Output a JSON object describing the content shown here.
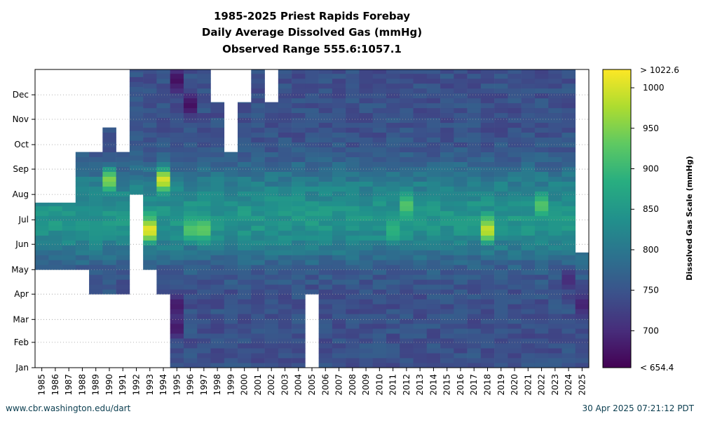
{
  "chart_data": {
    "type": "heatmap",
    "title_lines": [
      "1985-2025 Priest Rapids Forebay",
      "Daily Average Dissolved Gas (mmHg)",
      "Observed Range 555.6:1057.1"
    ],
    "x_categories": [
      "1985",
      "1986",
      "1987",
      "1988",
      "1989",
      "1990",
      "1991",
      "1992",
      "1993",
      "1994",
      "1995",
      "1996",
      "1997",
      "1998",
      "1999",
      "2000",
      "2001",
      "2002",
      "2003",
      "2004",
      "2005",
      "2006",
      "2007",
      "2008",
      "2009",
      "2010",
      "2011",
      "2012",
      "2013",
      "2014",
      "2015",
      "2016",
      "2017",
      "2018",
      "2019",
      "2020",
      "2021",
      "2022",
      "2023",
      "2024",
      "2025"
    ],
    "y_categories": [
      "Jan",
      "Feb",
      "Mar",
      "Apr",
      "May",
      "Jun",
      "Jul",
      "Aug",
      "Sep",
      "Oct",
      "Nov",
      "Dec"
    ],
    "colorbar": {
      "label": "Dissolved Gas Scale (mmHg)",
      "min": 654.4,
      "max": 1022.6,
      "ticks": [
        700,
        750,
        800,
        850,
        900,
        950,
        1000
      ],
      "top_label": "> 1022.6",
      "bottom_label": "< 654.4",
      "colormap": "viridis"
    },
    "grid": "dotted horizontal",
    "coverage": [
      {
        "year": "1985",
        "start": "Jul",
        "end": "May"
      },
      {
        "year": "1986",
        "start": "Jul",
        "end": "May"
      },
      {
        "year": "1987",
        "start": "Jul",
        "end": "May"
      },
      {
        "year": "1988",
        "start": "Sep",
        "end": "May"
      },
      {
        "year": "1989",
        "start": "Sep",
        "end": "Apr"
      },
      {
        "year": "1990",
        "start": "Oct",
        "end": "Apr"
      },
      {
        "year": "1991",
        "start": "Sep",
        "end": "Apr"
      },
      {
        "year": "1992",
        "start": "Dec",
        "end": "Aug"
      },
      {
        "year": "1993",
        "start": "Dec",
        "end": "May"
      },
      {
        "year": "1994",
        "start": "Dec",
        "end": "Apr"
      },
      {
        "year": "1995",
        "start": "Dec",
        "end": "Jan"
      },
      {
        "year": "1996",
        "start": "Dec",
        "end": "Jan"
      },
      {
        "year": "1997",
        "start": "Dec",
        "end": "Jan"
      },
      {
        "year": "1998",
        "start": "Nov",
        "end": "Jan"
      },
      {
        "year": "1999",
        "start": "Sep",
        "end": "Jan"
      },
      {
        "year": "2000",
        "start": "Nov",
        "end": "Jan"
      },
      {
        "year": "2001",
        "start": "Dec",
        "end": "Jan"
      },
      {
        "year": "2002",
        "start": "Nov",
        "end": "Jan"
      },
      {
        "year": "2003",
        "start": "Dec",
        "end": "Jan"
      },
      {
        "year": "2004",
        "start": "Dec",
        "end": "Jan"
      },
      {
        "year": "2005",
        "start": "Dec",
        "end": "Apr"
      },
      {
        "year": "2006",
        "start": "Dec",
        "end": "Jan"
      },
      {
        "year": "2007",
        "start": "Dec",
        "end": "Jan"
      },
      {
        "year": "2008",
        "start": "Dec",
        "end": "Jan"
      },
      {
        "year": "2009",
        "start": "Dec",
        "end": "Jan"
      },
      {
        "year": "2010",
        "start": "Dec",
        "end": "Jan"
      },
      {
        "year": "2011",
        "start": "Dec",
        "end": "Jan"
      },
      {
        "year": "2012",
        "start": "Dec",
        "end": "Jan"
      },
      {
        "year": "2013",
        "start": "Dec",
        "end": "Jan"
      },
      {
        "year": "2014",
        "start": "Dec",
        "end": "Jan"
      },
      {
        "year": "2015",
        "start": "Dec",
        "end": "Jan"
      },
      {
        "year": "2016",
        "start": "Dec",
        "end": "Jan"
      },
      {
        "year": "2017",
        "start": "Dec",
        "end": "Jan"
      },
      {
        "year": "2018",
        "start": "Dec",
        "end": "Jan"
      },
      {
        "year": "2019",
        "start": "Dec",
        "end": "Jan"
      },
      {
        "year": "2020",
        "start": "Dec",
        "end": "Jan"
      },
      {
        "year": "2021",
        "start": "Dec",
        "end": "Jan"
      },
      {
        "year": "2022",
        "start": "Dec",
        "end": "Jan"
      },
      {
        "year": "2023",
        "start": "Dec",
        "end": "Jan"
      },
      {
        "year": "2024",
        "start": "Dec",
        "end": "Jan"
      },
      {
        "year": "2025",
        "start": "May",
        "end": "Jan"
      }
    ],
    "highlights": [
      {
        "year": "1990",
        "month": "Aug",
        "value": 950
      },
      {
        "year": "1993",
        "month": "Jun",
        "value": 1010
      },
      {
        "year": "1994",
        "month": "Aug",
        "value": 1000
      },
      {
        "year": "1996",
        "month": "Jun",
        "value": 920
      },
      {
        "year": "1997",
        "month": "Jun",
        "value": 930
      },
      {
        "year": "2011",
        "month": "Jun",
        "value": 890
      },
      {
        "year": "2012",
        "month": "Jul",
        "value": 920
      },
      {
        "year": "2018",
        "month": "Jun",
        "value": 990
      },
      {
        "year": "2022",
        "month": "Jul",
        "value": 920
      },
      {
        "year": "1995",
        "month": "Feb",
        "value": 680
      },
      {
        "year": "1995",
        "month": "Mar",
        "value": 680
      },
      {
        "year": "1996",
        "month": "Nov",
        "value": 670
      },
      {
        "year": "1995",
        "month": "Dec",
        "value": 670
      },
      {
        "year": "2025",
        "month": "Mar",
        "value": 690
      },
      {
        "year": "2024",
        "month": "Apr",
        "value": 700
      }
    ]
  },
  "footer": {
    "left": "www.cbr.washington.edu/dart",
    "right": "30 Apr 2025 07:21:12 PDT"
  }
}
